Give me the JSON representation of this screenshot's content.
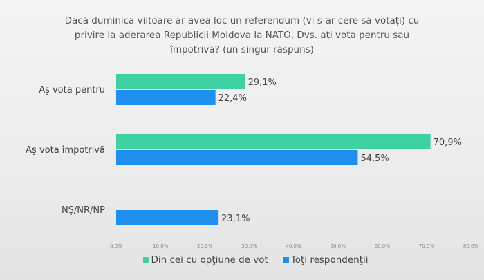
{
  "chart_data": {
    "type": "bar",
    "orientation": "horizontal",
    "title": "Dacă duminica viitoare ar avea loc un referendum (vi s-ar cere să votați) cu privire la aderarea Republicii Moldova la NATO, Dvs. ați vota pentru sau împotrivă? (un singur răspuns)",
    "categories": [
      "Aş vota pentru",
      "Aş vota împotrivă",
      "NŞ/NR/NP"
    ],
    "series": [
      {
        "name": "Din cei cu opţiune de vot",
        "color": "#3fd0a4",
        "values": [
          29.1,
          70.9,
          null
        ],
        "labels": [
          "29,1%",
          "70,9%",
          ""
        ]
      },
      {
        "name": "Toţi respondenţii",
        "color": "#1e8fee",
        "values": [
          22.4,
          54.5,
          23.1
        ],
        "labels": [
          "22,4%",
          "54,5%",
          "23,1%"
        ]
      }
    ],
    "xlim": [
      0,
      80
    ],
    "xticks": [
      "0,0%",
      "10,0%",
      "20,0%",
      "30,0%",
      "40,0%",
      "50,0%",
      "60,0%",
      "70,0%",
      "80,0%"
    ],
    "legend": "bottom",
    "grid": false
  }
}
